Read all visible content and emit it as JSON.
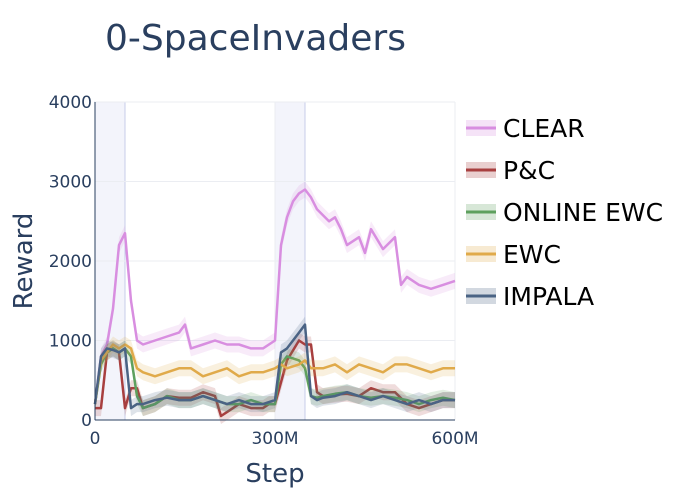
{
  "chart_data": {
    "type": "line",
    "title": "0-SpaceInvaders",
    "xlabel": "Step",
    "ylabel": "Reward",
    "xlim": [
      0,
      600000000
    ],
    "ylim": [
      0,
      4000
    ],
    "x_ticks": [
      {
        "value": 0,
        "label": "0"
      },
      {
        "value": 300000000,
        "label": "300M"
      },
      {
        "value": 600000000,
        "label": "600M"
      }
    ],
    "y_ticks": [
      {
        "value": 0,
        "label": "0"
      },
      {
        "value": 1000,
        "label": "1000"
      },
      {
        "value": 2000,
        "label": "2000"
      },
      {
        "value": 3000,
        "label": "3000"
      },
      {
        "value": 4000,
        "label": "4000"
      }
    ],
    "shaded_regions": [
      [
        0,
        50000000
      ],
      [
        300000000,
        350000000
      ]
    ],
    "grid": true,
    "legend_position": "right",
    "series": [
      {
        "name": "CLEAR",
        "color": "#d88ee0",
        "x": [
          0,
          10000000,
          20000000,
          30000000,
          40000000,
          50000000,
          60000000,
          70000000,
          80000000,
          100000000,
          120000000,
          140000000,
          150000000,
          160000000,
          180000000,
          200000000,
          220000000,
          240000000,
          260000000,
          280000000,
          300000000,
          310000000,
          320000000,
          330000000,
          340000000,
          350000000,
          360000000,
          370000000,
          390000000,
          400000000,
          410000000,
          420000000,
          440000000,
          450000000,
          460000000,
          480000000,
          500000000,
          510000000,
          520000000,
          540000000,
          560000000,
          580000000,
          600000000
        ],
        "y": [
          200,
          800,
          950,
          1400,
          2200,
          2350,
          1500,
          1000,
          950,
          1000,
          1050,
          1100,
          1200,
          900,
          950,
          1000,
          950,
          950,
          900,
          900,
          1000,
          2200,
          2550,
          2750,
          2850,
          2900,
          2800,
          2650,
          2500,
          2550,
          2400,
          2200,
          2300,
          2100,
          2400,
          2150,
          2300,
          1700,
          1800,
          1700,
          1650,
          1700,
          1750
        ]
      },
      {
        "name": "P&C",
        "color": "#a83f3f",
        "x": [
          0,
          10000000,
          20000000,
          30000000,
          40000000,
          50000000,
          60000000,
          70000000,
          80000000,
          100000000,
          120000000,
          140000000,
          160000000,
          180000000,
          200000000,
          210000000,
          220000000,
          240000000,
          260000000,
          280000000,
          290000000,
          300000000,
          320000000,
          340000000,
          350000000,
          360000000,
          370000000,
          380000000,
          400000000,
          420000000,
          440000000,
          460000000,
          480000000,
          500000000,
          520000000,
          540000000,
          560000000,
          580000000,
          600000000
        ],
        "y": [
          150,
          150,
          850,
          900,
          850,
          150,
          400,
          400,
          150,
          200,
          300,
          280,
          280,
          350,
          300,
          50,
          100,
          200,
          150,
          150,
          200,
          200,
          750,
          1000,
          950,
          950,
          350,
          300,
          320,
          330,
          300,
          400,
          350,
          350,
          200,
          150,
          200,
          250,
          250
        ]
      },
      {
        "name": "ONLINE EWC",
        "color": "#5ea05e",
        "x": [
          0,
          10000000,
          20000000,
          30000000,
          40000000,
          50000000,
          60000000,
          70000000,
          80000000,
          100000000,
          120000000,
          140000000,
          160000000,
          180000000,
          200000000,
          220000000,
          240000000,
          260000000,
          280000000,
          300000000,
          310000000,
          320000000,
          340000000,
          350000000,
          360000000,
          370000000,
          380000000,
          400000000,
          420000000,
          440000000,
          460000000,
          480000000,
          500000000,
          520000000,
          540000000,
          560000000,
          580000000,
          600000000
        ],
        "y": [
          200,
          700,
          850,
          900,
          850,
          900,
          800,
          300,
          150,
          200,
          300,
          250,
          250,
          300,
          250,
          200,
          200,
          250,
          200,
          200,
          700,
          800,
          750,
          650,
          300,
          280,
          300,
          330,
          350,
          300,
          280,
          300,
          280,
          250,
          200,
          250,
          280,
          250
        ]
      },
      {
        "name": "EWC",
        "color": "#e0aa4a",
        "x": [
          0,
          10000000,
          20000000,
          30000000,
          40000000,
          50000000,
          60000000,
          70000000,
          80000000,
          100000000,
          120000000,
          140000000,
          160000000,
          180000000,
          200000000,
          220000000,
          240000000,
          260000000,
          280000000,
          300000000,
          310000000,
          320000000,
          340000000,
          350000000,
          360000000,
          380000000,
          400000000,
          420000000,
          440000000,
          460000000,
          480000000,
          500000000,
          520000000,
          540000000,
          560000000,
          580000000,
          600000000
        ],
        "y": [
          200,
          750,
          850,
          950,
          900,
          950,
          900,
          650,
          600,
          550,
          600,
          650,
          650,
          550,
          600,
          650,
          550,
          600,
          600,
          650,
          700,
          650,
          700,
          750,
          650,
          650,
          700,
          600,
          700,
          650,
          600,
          700,
          700,
          650,
          600,
          650,
          650
        ]
      },
      {
        "name": "IMPALA",
        "color": "#4a6384",
        "x": [
          0,
          10000000,
          20000000,
          30000000,
          40000000,
          50000000,
          60000000,
          70000000,
          80000000,
          100000000,
          120000000,
          140000000,
          160000000,
          180000000,
          200000000,
          220000000,
          240000000,
          260000000,
          280000000,
          300000000,
          310000000,
          320000000,
          330000000,
          340000000,
          350000000,
          360000000,
          370000000,
          380000000,
          400000000,
          420000000,
          440000000,
          460000000,
          480000000,
          500000000,
          520000000,
          540000000,
          560000000,
          580000000,
          600000000
        ],
        "y": [
          200,
          800,
          900,
          880,
          850,
          900,
          150,
          200,
          200,
          250,
          280,
          250,
          250,
          300,
          250,
          200,
          250,
          200,
          200,
          250,
          850,
          900,
          1000,
          1100,
          1200,
          300,
          250,
          280,
          300,
          350,
          300,
          250,
          300,
          250,
          200,
          250,
          200,
          250,
          250
        ]
      }
    ]
  }
}
